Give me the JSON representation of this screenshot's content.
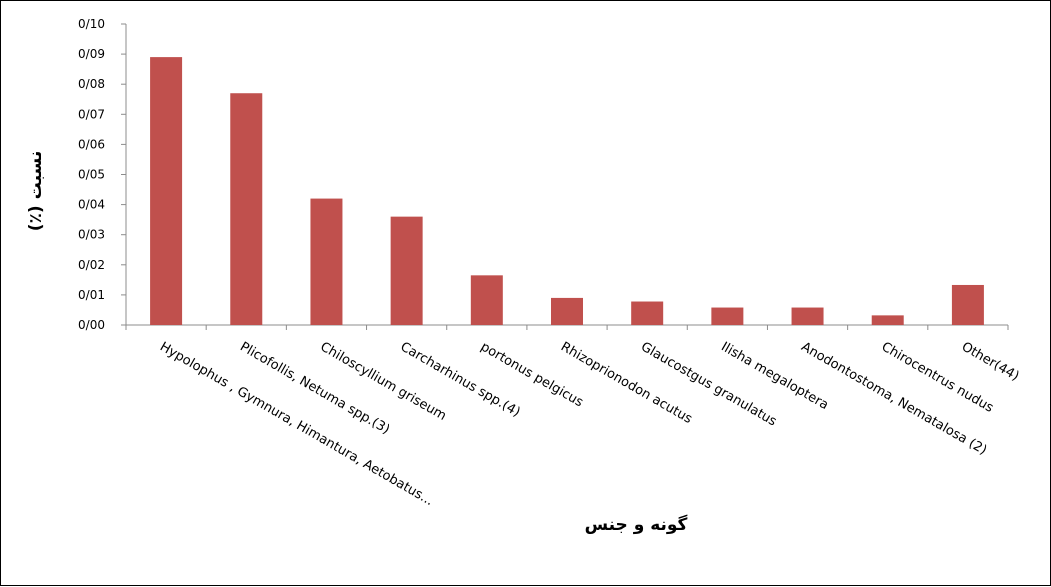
{
  "chart_data": {
    "type": "bar",
    "title": "",
    "xlabel": "گونه و جنس",
    "ylabel": "نسبت (٪)",
    "ylim": [
      0,
      0.1
    ],
    "yticks": [
      "0/00",
      "0/01",
      "0/02",
      "0/03",
      "0/04",
      "0/05",
      "0/06",
      "0/07",
      "0/08",
      "0/09",
      "0/10"
    ],
    "grid": false,
    "legend": "none",
    "bar_color": "#c0504d",
    "categories": [
      "Hypolophus , Gymnura, Himantura, Aetobatus...",
      "Plicofollis, Netuma spp.(3)",
      "Chiloscyllium griseum",
      "Carcharhinus spp.(4)",
      "portonus pelgicus",
      "Rhizoprionodon acutus",
      "Glaucostgus granulatus",
      "Ilisha megaloptera",
      "Anodontostoma, Nematalosa (2)",
      "Chirocentrus nudus",
      "Other(44)"
    ],
    "values": [
      0.089,
      0.077,
      0.042,
      0.036,
      0.0165,
      0.009,
      0.0078,
      0.0058,
      0.0058,
      0.0032,
      0.0133
    ]
  }
}
